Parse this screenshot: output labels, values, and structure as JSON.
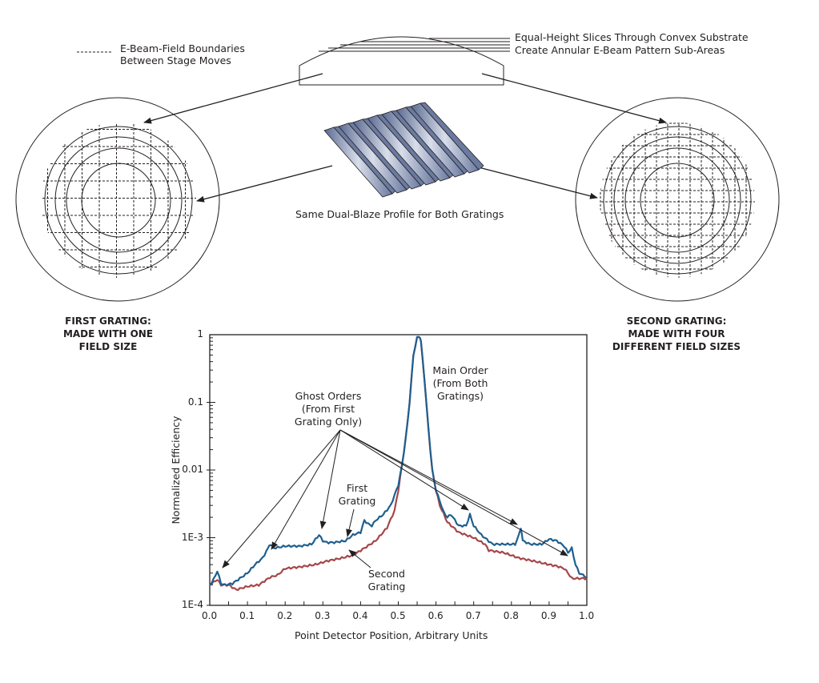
{
  "legend": {
    "line1": "E-Beam-Field Boundaries",
    "line2": "Between Stage Moves"
  },
  "substrate": {
    "line1": "Equal-Height Slices Through Convex Substrate",
    "line2": "Create Annular E-Beam Pattern Sub-Areas"
  },
  "profile_caption": "Same Dual-Blaze Profile for Both Gratings",
  "first_grating": {
    "line1": "FIRST GRATING:",
    "line2": "MADE WITH ONE",
    "line3": "FIELD SIZE"
  },
  "second_grating": {
    "line1": "SECOND GRATING:",
    "line2": "MADE WITH FOUR",
    "line3": "DIFFERENT FIELD SIZES"
  },
  "annotations": {
    "main_order": [
      "Main Order",
      "(From Both",
      "Gratings)"
    ],
    "ghost_orders": [
      "Ghost Orders",
      "(From First",
      "Grating Only)"
    ],
    "first_grating": [
      "First",
      "Grating"
    ],
    "second_grating": [
      "Second",
      "Grating"
    ]
  },
  "colors": {
    "first_grating": "#1f5f8f",
    "second_grating": "#a5474a",
    "ink": "#231f20",
    "grating_fill": "#8a97b5"
  },
  "chart_data": {
    "type": "line",
    "title": "",
    "xlabel": "Point Detector Position, Arbitrary Units",
    "ylabel": "Normalized Efficiency",
    "xlim": [
      0.0,
      1.0
    ],
    "ylim": [
      0.0001,
      1
    ],
    "yscale": "log",
    "x_ticks": [
      "0.0",
      "0.1",
      "0.2",
      "0.3",
      "0.4",
      "0.5",
      "0.6",
      "0.7",
      "0.8",
      "0.9",
      "1.0"
    ],
    "y_ticks": [
      "1E-4",
      "1E-3",
      "0.01",
      "0.1",
      "1"
    ],
    "grid": false,
    "series": [
      {
        "name": "First Grating",
        "color": "#1f5f8f",
        "x": [
          0.0,
          0.01,
          0.02,
          0.03,
          0.04,
          0.06,
          0.08,
          0.1,
          0.12,
          0.14,
          0.155,
          0.16,
          0.17,
          0.2,
          0.24,
          0.27,
          0.29,
          0.3,
          0.31,
          0.33,
          0.36,
          0.38,
          0.4,
          0.41,
          0.42,
          0.43,
          0.44,
          0.46,
          0.48,
          0.5,
          0.51,
          0.52,
          0.53,
          0.54,
          0.55,
          0.555,
          0.56,
          0.57,
          0.58,
          0.59,
          0.6,
          0.61,
          0.62,
          0.63,
          0.64,
          0.66,
          0.68,
          0.69,
          0.7,
          0.72,
          0.75,
          0.78,
          0.81,
          0.82,
          0.825,
          0.83,
          0.85,
          0.88,
          0.9,
          0.92,
          0.94,
          0.95,
          0.96,
          0.97,
          0.98,
          1.0
        ],
        "values": [
          0.0002,
          0.00024,
          0.00032,
          0.00021,
          0.0002,
          0.00021,
          0.00025,
          0.0003,
          0.0004,
          0.0005,
          0.0007,
          0.0008,
          0.0007,
          0.00075,
          0.00075,
          0.0008,
          0.0011,
          0.0009,
          0.00085,
          0.00085,
          0.0009,
          0.0011,
          0.0012,
          0.0018,
          0.0016,
          0.0015,
          0.0018,
          0.0022,
          0.003,
          0.006,
          0.012,
          0.03,
          0.1,
          0.5,
          0.9,
          0.95,
          0.8,
          0.2,
          0.04,
          0.01,
          0.005,
          0.0035,
          0.0024,
          0.002,
          0.0022,
          0.0015,
          0.0015,
          0.0022,
          0.0015,
          0.0011,
          0.0008,
          0.0008,
          0.0008,
          0.0011,
          0.0014,
          0.0009,
          0.0008,
          0.0008,
          0.00095,
          0.0009,
          0.00075,
          0.0006,
          0.0007,
          0.0004,
          0.0003,
          0.00026
        ]
      },
      {
        "name": "Second Grating",
        "color": "#a5474a",
        "x": [
          0.0,
          0.01,
          0.02,
          0.03,
          0.05,
          0.07,
          0.1,
          0.13,
          0.16,
          0.18,
          0.2,
          0.24,
          0.28,
          0.31,
          0.35,
          0.38,
          0.41,
          0.44,
          0.47,
          0.49,
          0.5,
          0.51,
          0.52,
          0.53,
          0.54,
          0.55,
          0.555,
          0.56,
          0.57,
          0.58,
          0.59,
          0.6,
          0.61,
          0.63,
          0.66,
          0.7,
          0.73,
          0.74,
          0.78,
          0.82,
          0.86,
          0.9,
          0.92,
          0.94,
          0.95,
          0.96,
          0.98,
          1.0
        ],
        "values": [
          0.0002,
          0.00022,
          0.00024,
          0.0002,
          0.0002,
          0.00017,
          0.00019,
          0.0002,
          0.00026,
          0.00028,
          0.00035,
          0.00037,
          0.0004,
          0.00045,
          0.0005,
          0.00055,
          0.0007,
          0.0009,
          0.0014,
          0.0025,
          0.005,
          0.012,
          0.03,
          0.1,
          0.5,
          0.9,
          0.95,
          0.8,
          0.2,
          0.04,
          0.01,
          0.005,
          0.003,
          0.0017,
          0.0012,
          0.001,
          0.0008,
          0.00065,
          0.0006,
          0.0005,
          0.00045,
          0.0004,
          0.00038,
          0.00035,
          0.0003,
          0.00025,
          0.00025,
          0.00025
        ]
      }
    ],
    "annotations": [
      {
        "text": "Main Order (From Both Gratings)",
        "x": 0.6,
        "y": 0.25
      },
      {
        "text": "Ghost Orders (From First Grating Only)",
        "x": 0.32,
        "y": 0.08,
        "arrows_to_x": [
          0.02,
          0.16,
          0.29,
          0.68,
          0.82,
          0.96
        ]
      },
      {
        "text": "First Grating",
        "x": 0.39,
        "y": 0.0025
      },
      {
        "text": "Second Grating",
        "x": 0.47,
        "y": 0.00025
      }
    ]
  }
}
